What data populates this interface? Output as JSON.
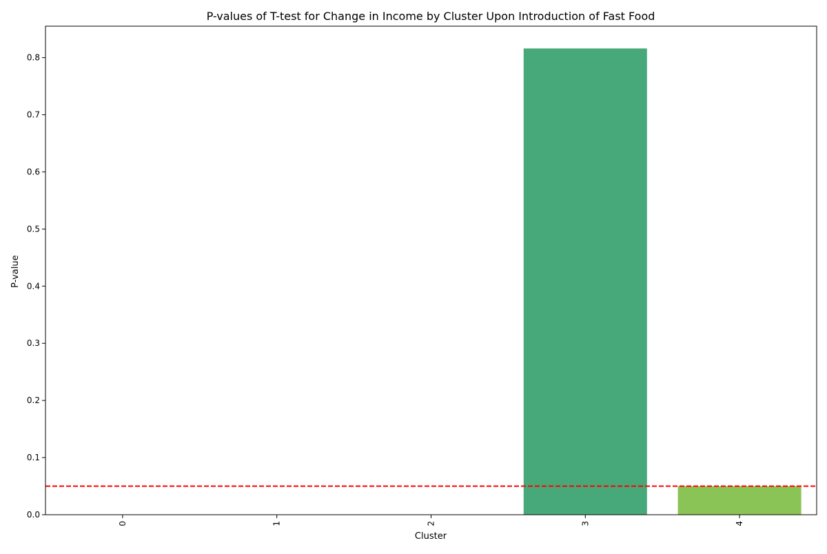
{
  "chart_data": {
    "type": "bar",
    "title": "P-values of T-test for Change in Income by Cluster Upon Introduction of Fast Food",
    "xlabel": "Cluster",
    "ylabel": "P-value",
    "categories": [
      "0",
      "1",
      "2",
      "3",
      "4"
    ],
    "values": [
      0.0,
      0.0,
      0.0,
      0.816,
      0.05
    ],
    "bar_colors": [
      "#440154",
      "#3b528b",
      "#21918c",
      "#47a97a",
      "#8bc456"
    ],
    "ylim": [
      0,
      0.855
    ],
    "yticks": [
      0.0,
      0.1,
      0.2,
      0.3,
      0.4,
      0.5,
      0.6,
      0.7,
      0.8
    ],
    "ytick_labels": [
      "0.0",
      "0.1",
      "0.2",
      "0.3",
      "0.4",
      "0.5",
      "0.6",
      "0.7",
      "0.8"
    ],
    "reference_line": {
      "value": 0.05,
      "color": "#ff0000",
      "style": "dashed"
    },
    "grid": false,
    "legend": "none",
    "x_tick_rotation_deg": 90
  }
}
